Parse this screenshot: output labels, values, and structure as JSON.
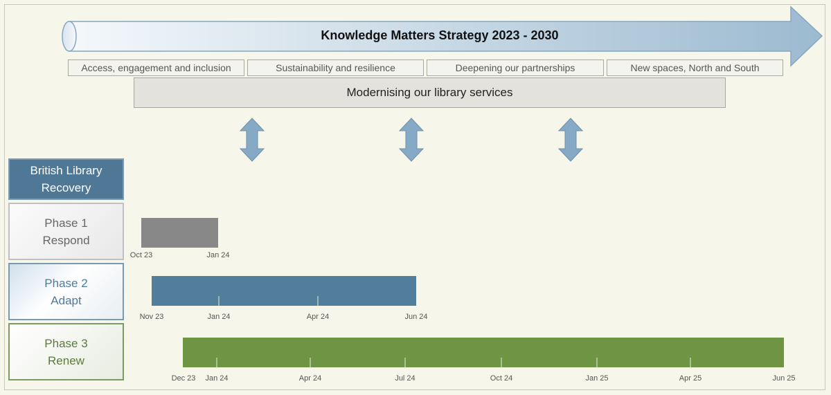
{
  "banner": {
    "title": "Knowledge Matters Strategy 2023 - 2030",
    "arrow_colors": [
      "#f4f8fb",
      "#9cbad0"
    ]
  },
  "themes": [
    "Access, engagement and inclusion",
    "Sustainability and resilience",
    "Deepening our partnerships",
    "New spaces, North and South"
  ],
  "modernising": "Modernising our library services",
  "connector_icon": "double-headed-vertical-arrow",
  "recovery": {
    "title_line1": "British Library",
    "title_line2": "Recovery",
    "phases": [
      {
        "name": "Phase 1",
        "subtitle": "Respond",
        "color": "#888888",
        "start": "Oct 23",
        "end": "Jan 24",
        "ticks": [
          "Oct 23",
          "Jan 24"
        ],
        "inner_ticks": []
      },
      {
        "name": "Phase 2",
        "subtitle": "Adapt",
        "color": "#527d9b",
        "start": "Nov 23",
        "end": "Jun 24",
        "ticks": [
          "Nov 23",
          "Jan 24",
          "Apr 24",
          "Jun 24"
        ],
        "inner_ticks": [
          "Jan 24",
          "Apr 24"
        ]
      },
      {
        "name": "Phase 3",
        "subtitle": "Renew",
        "color": "#6f9444",
        "start": "Dec 23",
        "end": "Jun 25",
        "ticks": [
          "Dec 23",
          "Jan 24",
          "Apr 24",
          "Jul 24",
          "Oct 24",
          "Jan 25",
          "Apr 25",
          "Jun 25"
        ],
        "inner_ticks": [
          "Jan 24",
          "Apr 24",
          "Jul 24",
          "Oct 24",
          "Jan 25",
          "Apr 25"
        ]
      }
    ]
  }
}
